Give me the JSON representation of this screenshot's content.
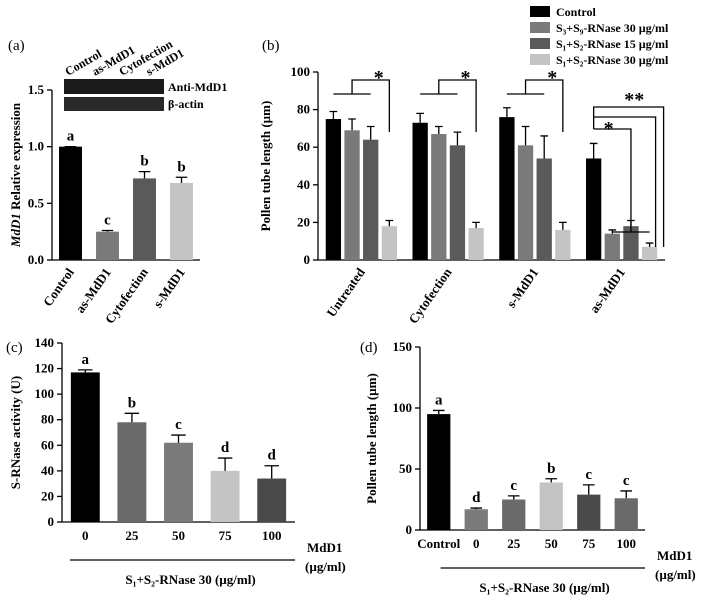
{
  "chart_data": [
    {
      "type": "bar",
      "panel": "(a)",
      "y_label_gene": "MdD1",
      "y_label": "Relative expression",
      "categories": [
        "Control",
        "as-MdD1",
        "Cytofection",
        "s-MdD1"
      ],
      "values": [
        1.0,
        0.25,
        0.72,
        0.68
      ],
      "errors": [
        0.0,
        0.01,
        0.06,
        0.05
      ],
      "colors": [
        "#000000",
        "#7a7a7a",
        "#5a5a5a",
        "#c4c4c4"
      ],
      "ylim": [
        0,
        1.5
      ],
      "yticks": [
        {
          "value": 0,
          "label": "0.0"
        },
        {
          "value": 0.5,
          "label": "0.5"
        },
        {
          "value": 1.0,
          "label": "1.0"
        },
        {
          "value": 1.5,
          "label": "1.5"
        }
      ],
      "annotations": [
        "a",
        "c",
        "b",
        "b"
      ],
      "blot_labels": [
        "Anti-MdD1",
        "β-actin"
      ]
    },
    {
      "type": "grouped_bar",
      "panel": "(b)",
      "y_label": "Pollen tube length (µm)",
      "categories": [
        "Untreated",
        "Cytofection",
        "s-MdD1",
        "as-MdD1"
      ],
      "series": [
        {
          "name": "Control",
          "color": "#000000",
          "values": [
            75,
            73,
            76,
            54
          ],
          "errors": [
            4,
            5,
            5,
            8
          ]
        },
        {
          "name": "S₃+S₉-RNase 30 µg/ml",
          "color": "#7a7a7a",
          "values": [
            69,
            67,
            61,
            14
          ],
          "errors": [
            6,
            4,
            10,
            2
          ]
        },
        {
          "name": "S₁+S₂-RNase 15 µg/ml",
          "color": "#5a5a5a",
          "values": [
            64,
            61,
            54,
            18
          ],
          "errors": [
            7,
            7,
            12,
            3
          ]
        },
        {
          "name": "S₁+S₂-RNase 30 µg/ml",
          "color": "#c4c4c4",
          "values": [
            18,
            17,
            16,
            7
          ],
          "errors": [
            3,
            3,
            4,
            2
          ]
        }
      ],
      "ylim": [
        0,
        100
      ],
      "yticks": [
        0,
        20,
        40,
        60,
        80,
        100
      ],
      "annotations": [
        "*",
        "*",
        "*",
        "*",
        "**"
      ]
    },
    {
      "type": "bar",
      "panel": "(c)",
      "y_label": "S-RNase activity (U)",
      "categories": [
        "0",
        "25",
        "50",
        "75",
        "100"
      ],
      "values": [
        117,
        78,
        62,
        40,
        34
      ],
      "errors": [
        2,
        7,
        6,
        10,
        10
      ],
      "colors": [
        "#000000",
        "#6a6a6a",
        "#7a7a7a",
        "#c4c4c4",
        "#4a4a4a"
      ],
      "ylim": [
        0,
        140
      ],
      "yticks": [
        0,
        20,
        40,
        60,
        80,
        100,
        120,
        140
      ],
      "annotations": [
        "a",
        "b",
        "c",
        "d",
        "d"
      ],
      "x_label": "MdD1",
      "x_unit": "(µg/ml)",
      "x_sublabel": "S₁+S₂-RNase 30 (µg/ml)"
    },
    {
      "type": "bar",
      "panel": "(d)",
      "y_label": "Pollen tube length (µm)",
      "categories": [
        "Control",
        "0",
        "25",
        "50",
        "75",
        "100"
      ],
      "values": [
        95,
        17,
        25,
        39,
        29,
        26
      ],
      "errors": [
        3,
        1,
        3,
        3,
        8,
        6
      ],
      "colors": [
        "#000000",
        "#7a7a7a",
        "#6a6a6a",
        "#c4c4c4",
        "#4a4a4a",
        "#6a6a6a"
      ],
      "ylim": [
        0,
        150
      ],
      "yticks": [
        0,
        50,
        100,
        150
      ],
      "annotations": [
        "a",
        "d",
        "c",
        "b",
        "c",
        "c"
      ],
      "x_label": "MdD1",
      "x_unit": "(µg/ml)",
      "x_sublabel": "S₁+S₂-RNase 30 (µg/ml)"
    }
  ]
}
